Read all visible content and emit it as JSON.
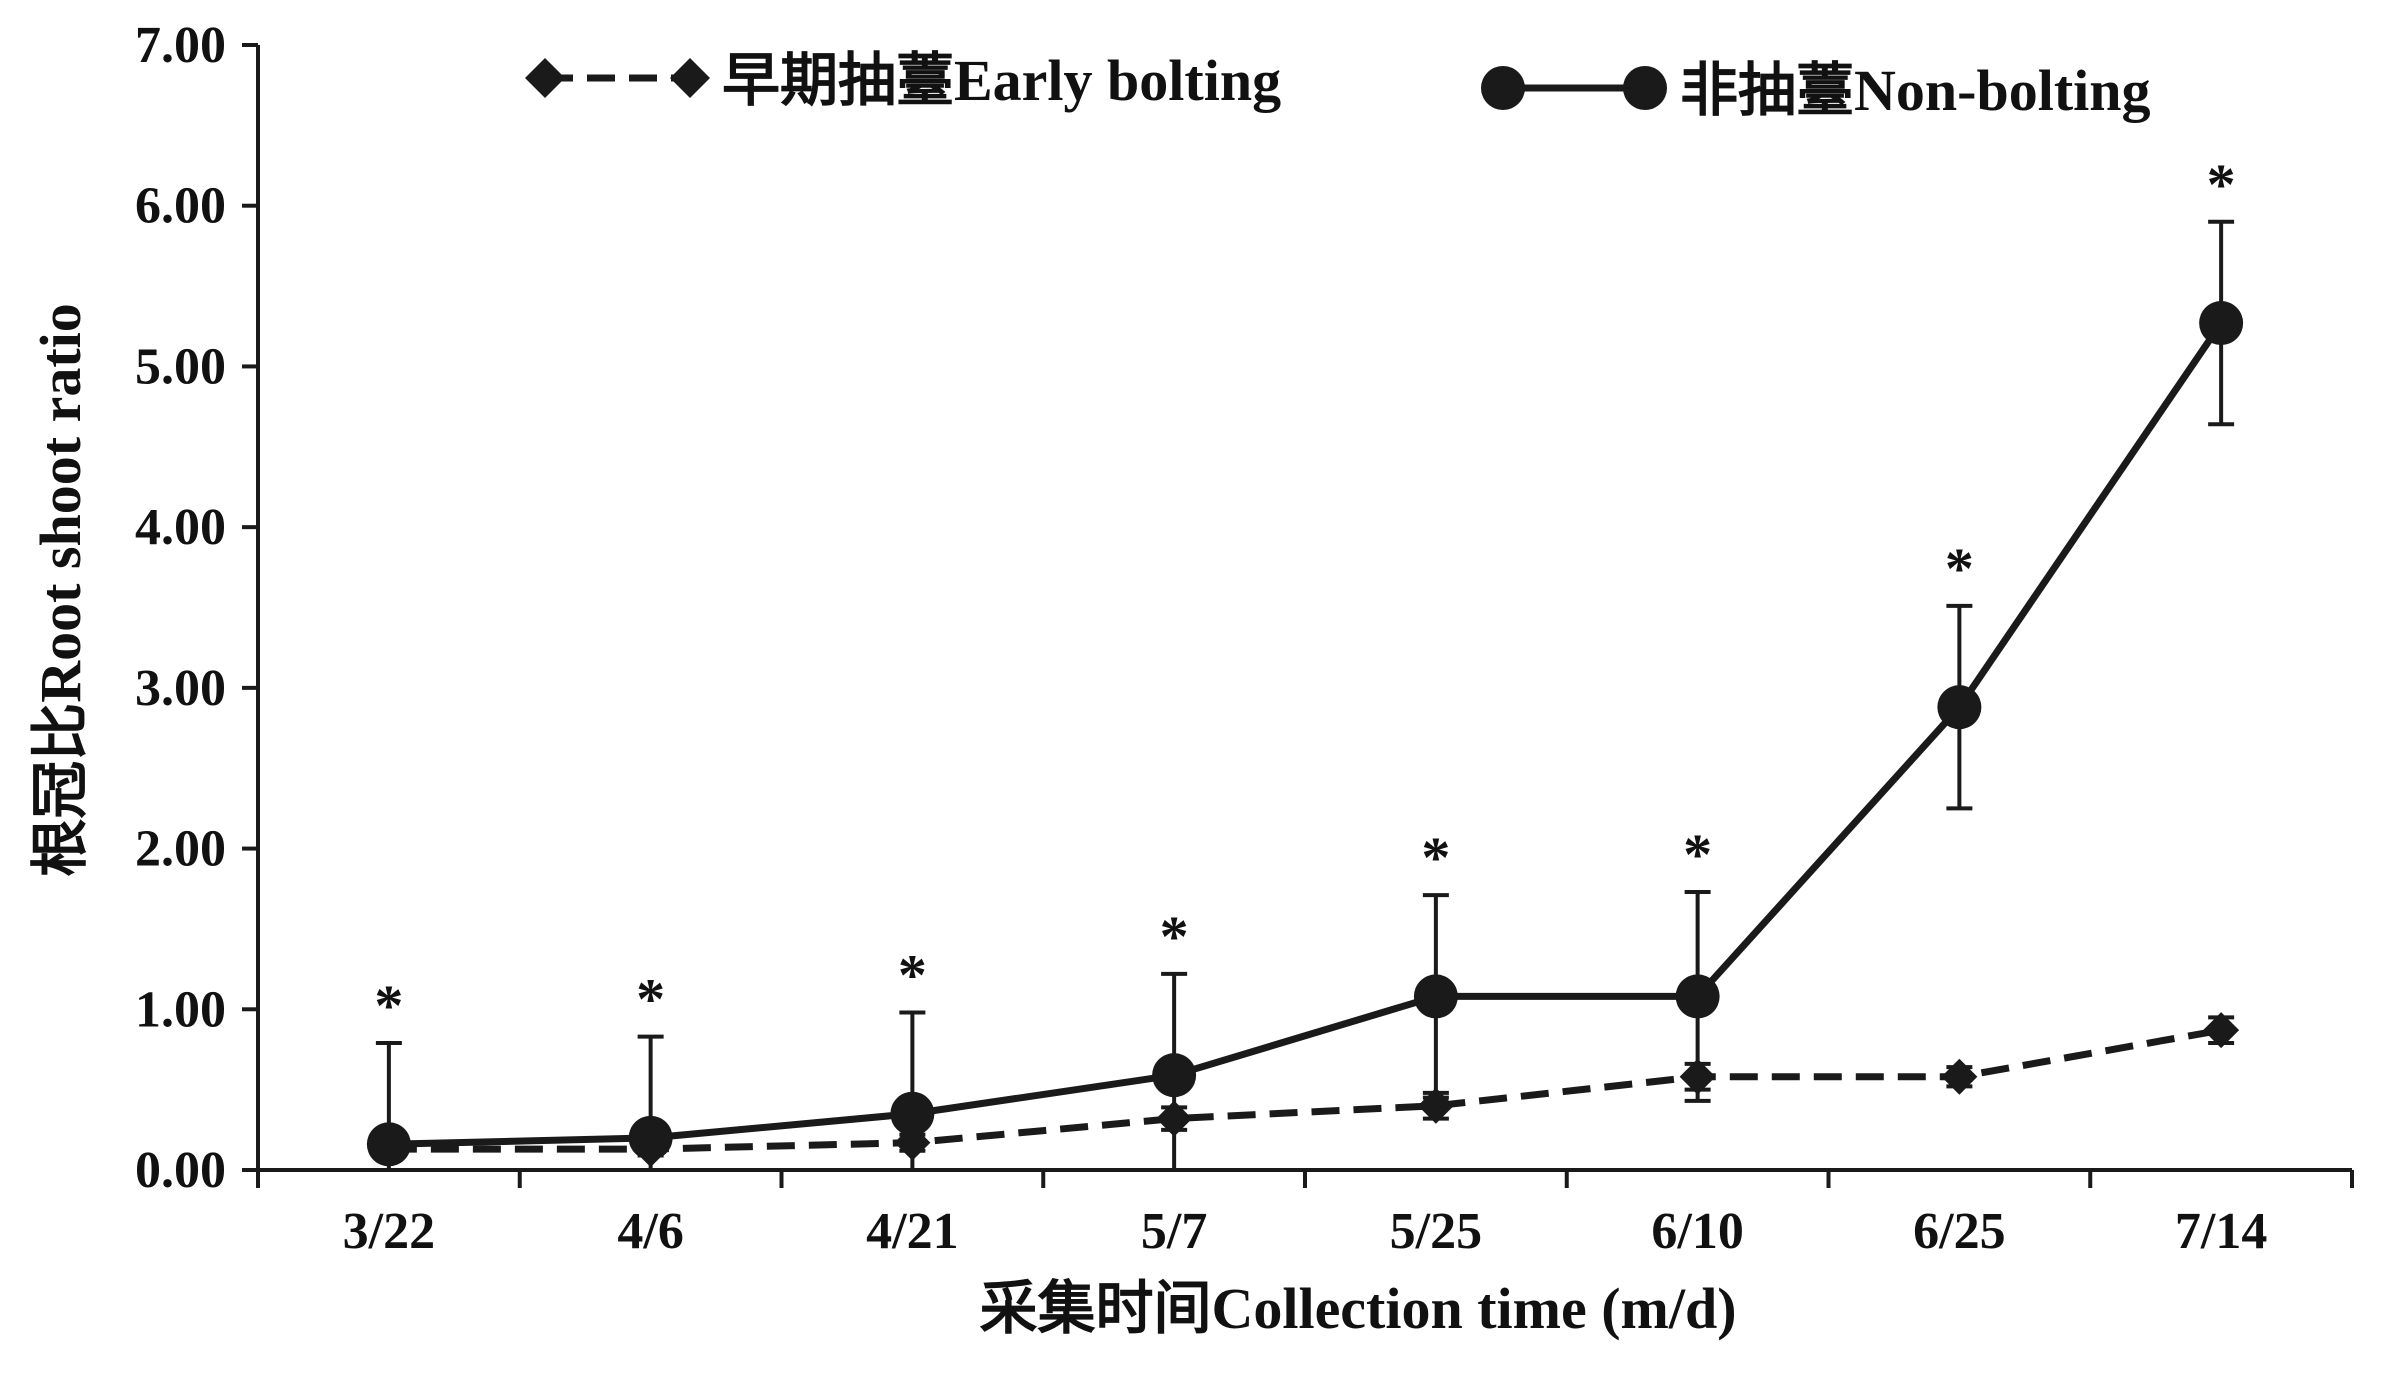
{
  "chart_data": {
    "type": "line",
    "categories": [
      "3/22",
      "4/6",
      "4/21",
      "5/7",
      "5/25",
      "6/10",
      "6/25",
      "7/14"
    ],
    "xlabel": "采集时间Collection time (m/d)",
    "ylabel": "根冠比Root shoot ratio",
    "ylim": [
      0,
      7
    ],
    "yticks": [
      "0.00",
      "1.00",
      "2.00",
      "3.00",
      "4.00",
      "5.00",
      "6.00",
      "7.00"
    ],
    "grid": false,
    "legend_position": "top",
    "series": [
      {
        "name": "早期抽薹Early bolting",
        "style": "dashed",
        "marker": "diamond",
        "color": "#1a1a1a",
        "values": [
          0.13,
          0.13,
          0.17,
          0.32,
          0.4,
          0.58,
          0.58,
          0.87
        ],
        "errors": [
          0.04,
          0.04,
          0.05,
          0.07,
          0.08,
          0.08,
          0.06,
          0.08
        ]
      },
      {
        "name": "非抽薹Non-bolting",
        "style": "solid",
        "marker": "circle",
        "color": "#1a1a1a",
        "values": [
          0.16,
          0.2,
          0.35,
          0.59,
          1.08,
          1.08,
          2.88,
          5.27
        ],
        "errors": [
          0.63,
          0.63,
          0.63,
          0.63,
          0.63,
          0.65,
          0.63,
          0.63
        ]
      }
    ],
    "annotations": [
      "*",
      "*",
      "*",
      "*",
      "*",
      "*",
      "*",
      "*"
    ]
  }
}
